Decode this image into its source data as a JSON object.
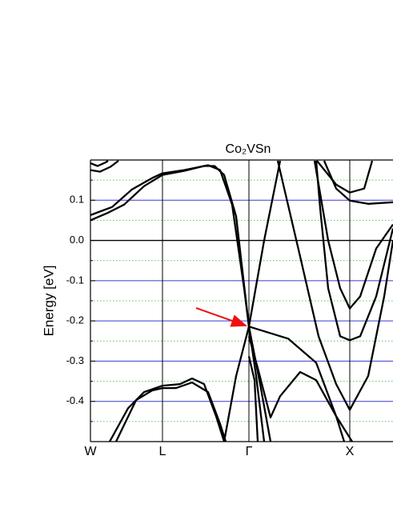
{
  "chart_data": {
    "type": "line",
    "title": "Co₂VSn",
    "y_label": "Energy [eV]",
    "xlim": [
      0,
      378
    ],
    "ylim": [
      -0.5,
      0.2
    ],
    "xticks": [
      {
        "value": 0,
        "label": "W"
      },
      {
        "value": 90,
        "label": "L"
      },
      {
        "value": 198,
        "label": "Γ"
      },
      {
        "value": 324,
        "label": "X"
      }
    ],
    "yticks": [
      0.1,
      {
        "value": 0,
        "label": "0.0"
      },
      -0.1,
      -0.2,
      -0.3,
      -0.4
    ],
    "minor_yticks": [
      0.15,
      0.05,
      -0.05,
      -0.15,
      -0.25,
      -0.35,
      -0.45
    ],
    "grid": true,
    "major_grid_color": "#3a3ad0",
    "minor_grid_color": "#5cc45c",
    "band_color": "#000000",
    "series": [
      {
        "x": [
          0,
          12,
          25,
          35
        ],
        "values": [
          0.175,
          0.171,
          0.183,
          0.198
        ]
      },
      {
        "x": [
          0,
          9,
          19,
          22
        ],
        "values": [
          0.192,
          0.185,
          0.194,
          0.198
        ]
      },
      {
        "x": [
          0,
          22,
          42,
          67,
          90,
          117,
          142,
          155,
          167,
          182,
          198,
          212,
          225
        ],
        "values": [
          0.05,
          0.069,
          0.089,
          0.135,
          0.163,
          0.173,
          0.185,
          0.185,
          0.163,
          0.06,
          -0.214,
          -0.357,
          -0.5
        ]
      },
      {
        "x": [
          0,
          27,
          52,
          77,
          90,
          117,
          147,
          162,
          177,
          192,
          198,
          207,
          217
        ],
        "values": [
          0.063,
          0.083,
          0.127,
          0.155,
          0.167,
          0.175,
          0.187,
          0.175,
          0.089,
          -0.119,
          -0.214,
          -0.337,
          -0.5
        ]
      },
      {
        "x": [
          167,
          182,
          198,
          217,
          237
        ],
        "values": [
          -0.5,
          -0.337,
          -0.214,
          0,
          0.198
        ]
      },
      {
        "x": [
          198,
          247,
          282,
          307,
          317
        ],
        "values": [
          -0.214,
          -0.244,
          -0.304,
          -0.437,
          -0.5
        ]
      },
      {
        "x": [
          198,
          209,
          225,
          237,
          262,
          282,
          307,
          327
        ],
        "values": [
          -0.238,
          -0.317,
          -0.44,
          -0.387,
          -0.327,
          -0.347,
          -0.437,
          -0.5
        ]
      },
      {
        "x": [
          198,
          205,
          209
        ],
        "values": [
          -0.288,
          -0.347,
          -0.5
        ]
      },
      {
        "x": [
          234,
          262,
          285,
          307,
          324,
          347,
          367,
          378
        ],
        "values": [
          0.198,
          -0.04,
          -0.238,
          -0.357,
          -0.421,
          -0.337,
          -0.139,
          0
        ]
      },
      {
        "x": [
          280,
          297,
          312,
          324,
          337,
          357,
          378
        ],
        "values": [
          0.198,
          0,
          -0.119,
          -0.169,
          -0.139,
          -0.02,
          0.04
        ]
      },
      {
        "x": [
          283,
          307,
          324,
          342,
          352
        ],
        "values": [
          0.198,
          0.139,
          0.119,
          0.129,
          0.198
        ]
      },
      {
        "x": [
          292,
          307,
          324,
          347,
          378
        ],
        "values": [
          0.198,
          0.129,
          0.099,
          0.091,
          0.095
        ]
      },
      {
        "x": [
          282,
          287,
          297,
          312,
          324,
          337,
          357,
          378
        ],
        "values": [
          0.198,
          0.08,
          -0.119,
          -0.238,
          -0.248,
          -0.238,
          -0.139,
          0.03
        ]
      },
      {
        "x": [
          24,
          47,
          67,
          90,
          112,
          127,
          142,
          157,
          167
        ],
        "values": [
          -0.5,
          -0.417,
          -0.377,
          -0.361,
          -0.357,
          -0.343,
          -0.357,
          -0.437,
          -0.5
        ]
      },
      {
        "x": [
          32,
          57,
          77,
          90,
          107,
          127,
          147,
          162,
          169
        ],
        "values": [
          -0.5,
          -0.397,
          -0.373,
          -0.367,
          -0.367,
          -0.353,
          -0.377,
          -0.456,
          -0.5
        ]
      }
    ]
  }
}
